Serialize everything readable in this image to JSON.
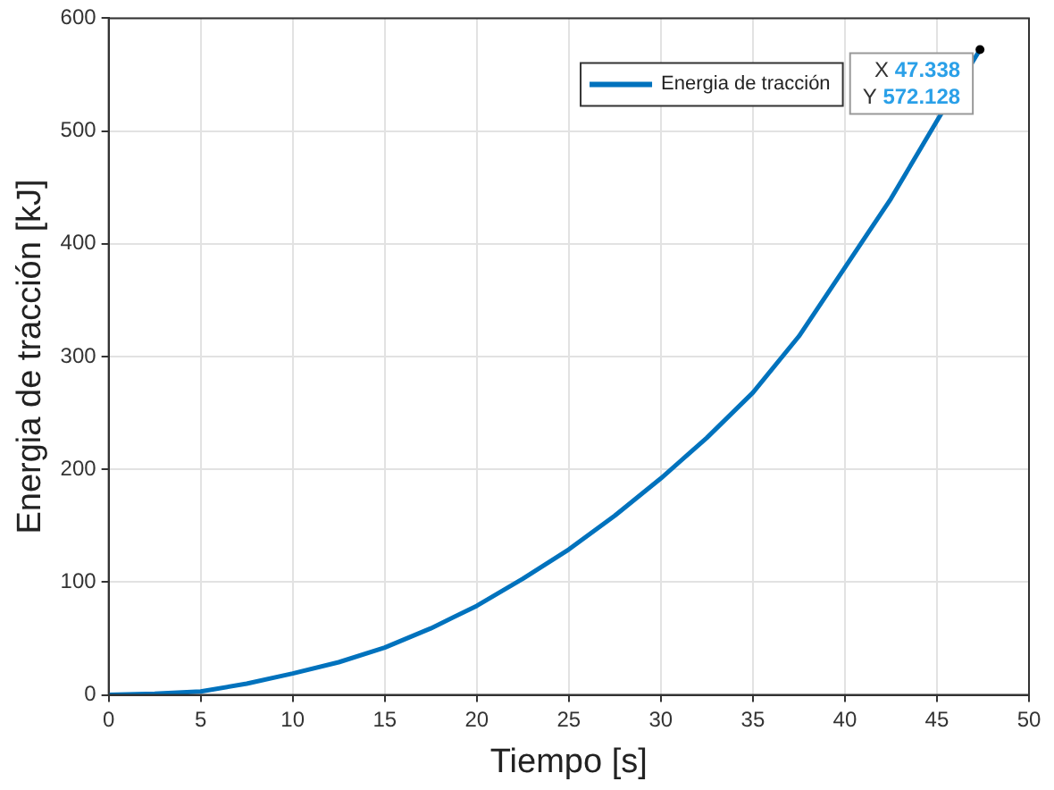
{
  "chart_data": {
    "type": "line",
    "xlabel": "Tiempo [s]",
    "ylabel": "Energia de tracción [kJ]",
    "x": [
      0,
      2.5,
      5,
      7.5,
      10,
      12.5,
      15,
      17.5,
      20,
      22.5,
      25,
      27.5,
      30,
      32.5,
      35,
      37.5,
      40,
      42.5,
      45,
      47.338
    ],
    "series": [
      {
        "name": "Energia de tracción",
        "color": "#0072bd",
        "values": [
          0,
          1,
          3,
          10,
          19,
          29,
          42,
          59,
          79,
          103,
          129,
          159,
          192,
          228,
          268,
          318,
          379,
          440,
          509,
          572.128
        ]
      }
    ],
    "xlim": [
      0,
      50
    ],
    "xticks": [
      0,
      5,
      10,
      15,
      20,
      25,
      30,
      35,
      40,
      45,
      50
    ],
    "ylim": [
      0,
      600
    ],
    "yticks": [
      0,
      100,
      200,
      300,
      400,
      500,
      600
    ],
    "grid": true,
    "legend": "top",
    "marker": "none",
    "line_style": "solid",
    "annotations": [
      {
        "text": "X 47.338\nY 572.128",
        "x": 47.338,
        "y": 572.128
      }
    ]
  }
}
